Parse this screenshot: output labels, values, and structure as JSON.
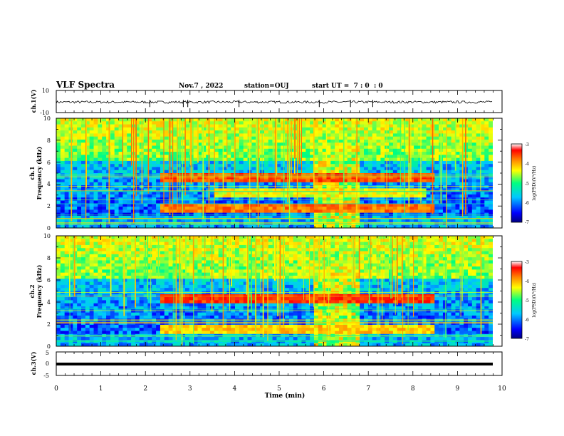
{
  "header": {
    "title": "VLF Spectra",
    "date": "Nov.7 , 2022",
    "station": "station=OUJ",
    "start": "start UT =  7 : 0  : 0"
  },
  "colors": {
    "background": "#ffffff",
    "axes": "#000000",
    "colormap": [
      "#000080",
      "#0000ff",
      "#00c8ff",
      "#00ff80",
      "#ffff00",
      "#ff8000",
      "#ff0000",
      "#ffffff"
    ]
  },
  "chart_data": [
    {
      "type": "line",
      "panel": "ch1-waveform",
      "ylabel": "ch.1(V)",
      "ylim": [
        -10,
        10
      ],
      "yticks": [
        "10",
        "-10"
      ],
      "xlim": [
        0,
        10
      ],
      "baseline": -0.5,
      "spikes_min": [
        2.1,
        2.85,
        2.95,
        4.1,
        5.9,
        6.6,
        7.1
      ]
    },
    {
      "type": "heatmap",
      "panel": "ch1-spectrogram",
      "ylabel": "ch.1\nFrequency (kHz)",
      "ylim": [
        0,
        10
      ],
      "yticks": [
        "0",
        "2",
        "4",
        "6",
        "8",
        "10"
      ],
      "xlim": [
        0,
        10
      ],
      "colorbar": {
        "label": "log(PSD)(V²/Hz)",
        "range": [
          -7,
          -3
        ],
        "ticks": [
          "-3",
          "-4",
          "-5",
          "-6",
          "-7"
        ]
      },
      "bands_kHz": [
        {
          "f": 4.5,
          "start_min": 2.3,
          "end_min": 8.5,
          "level": -3.6
        },
        {
          "f": 1.8,
          "start_min": 2.3,
          "end_min": 8.5,
          "level": -3.8
        },
        {
          "f": 3.2,
          "start_min": 3.5,
          "end_min": 8.3,
          "level": -4.4
        }
      ],
      "enhancement_min": [
        5.8,
        6.8
      ]
    },
    {
      "type": "heatmap",
      "panel": "ch2-spectrogram",
      "ylabel": "ch.2\nFrequency (kHz)",
      "ylim": [
        0,
        10
      ],
      "yticks": [
        "0",
        "2",
        "4",
        "6",
        "8",
        "10"
      ],
      "xlim": [
        0,
        10
      ],
      "colorbar": {
        "label": "log(PSD)(V²/Hz)",
        "range": [
          -7,
          -3
        ],
        "ticks": [
          "-3",
          "-4",
          "-5",
          "-6",
          "-7"
        ]
      },
      "bands_kHz": [
        {
          "f": 4.3,
          "start_min": 2.3,
          "end_min": 8.5,
          "level": -3.5
        },
        {
          "f": 1.6,
          "start_min": 2.3,
          "end_min": 8.5,
          "level": -4.2
        },
        {
          "f": 6.5,
          "start_min": 3.5,
          "end_min": 7.5,
          "level": -4.6
        }
      ],
      "enhancement_min": [
        5.8,
        6.8
      ]
    },
    {
      "type": "line",
      "panel": "ch3-waveform",
      "ylabel": "ch.3(V)",
      "ylim": [
        -5,
        5
      ],
      "yticks": [
        "5",
        "0",
        "-5"
      ],
      "xlim": [
        0,
        10
      ],
      "baseline": -1.2,
      "xlabel": "Time (min)",
      "xticks": [
        "0",
        "1",
        "2",
        "3",
        "4",
        "5",
        "6",
        "7",
        "8",
        "9",
        "10"
      ]
    }
  ]
}
